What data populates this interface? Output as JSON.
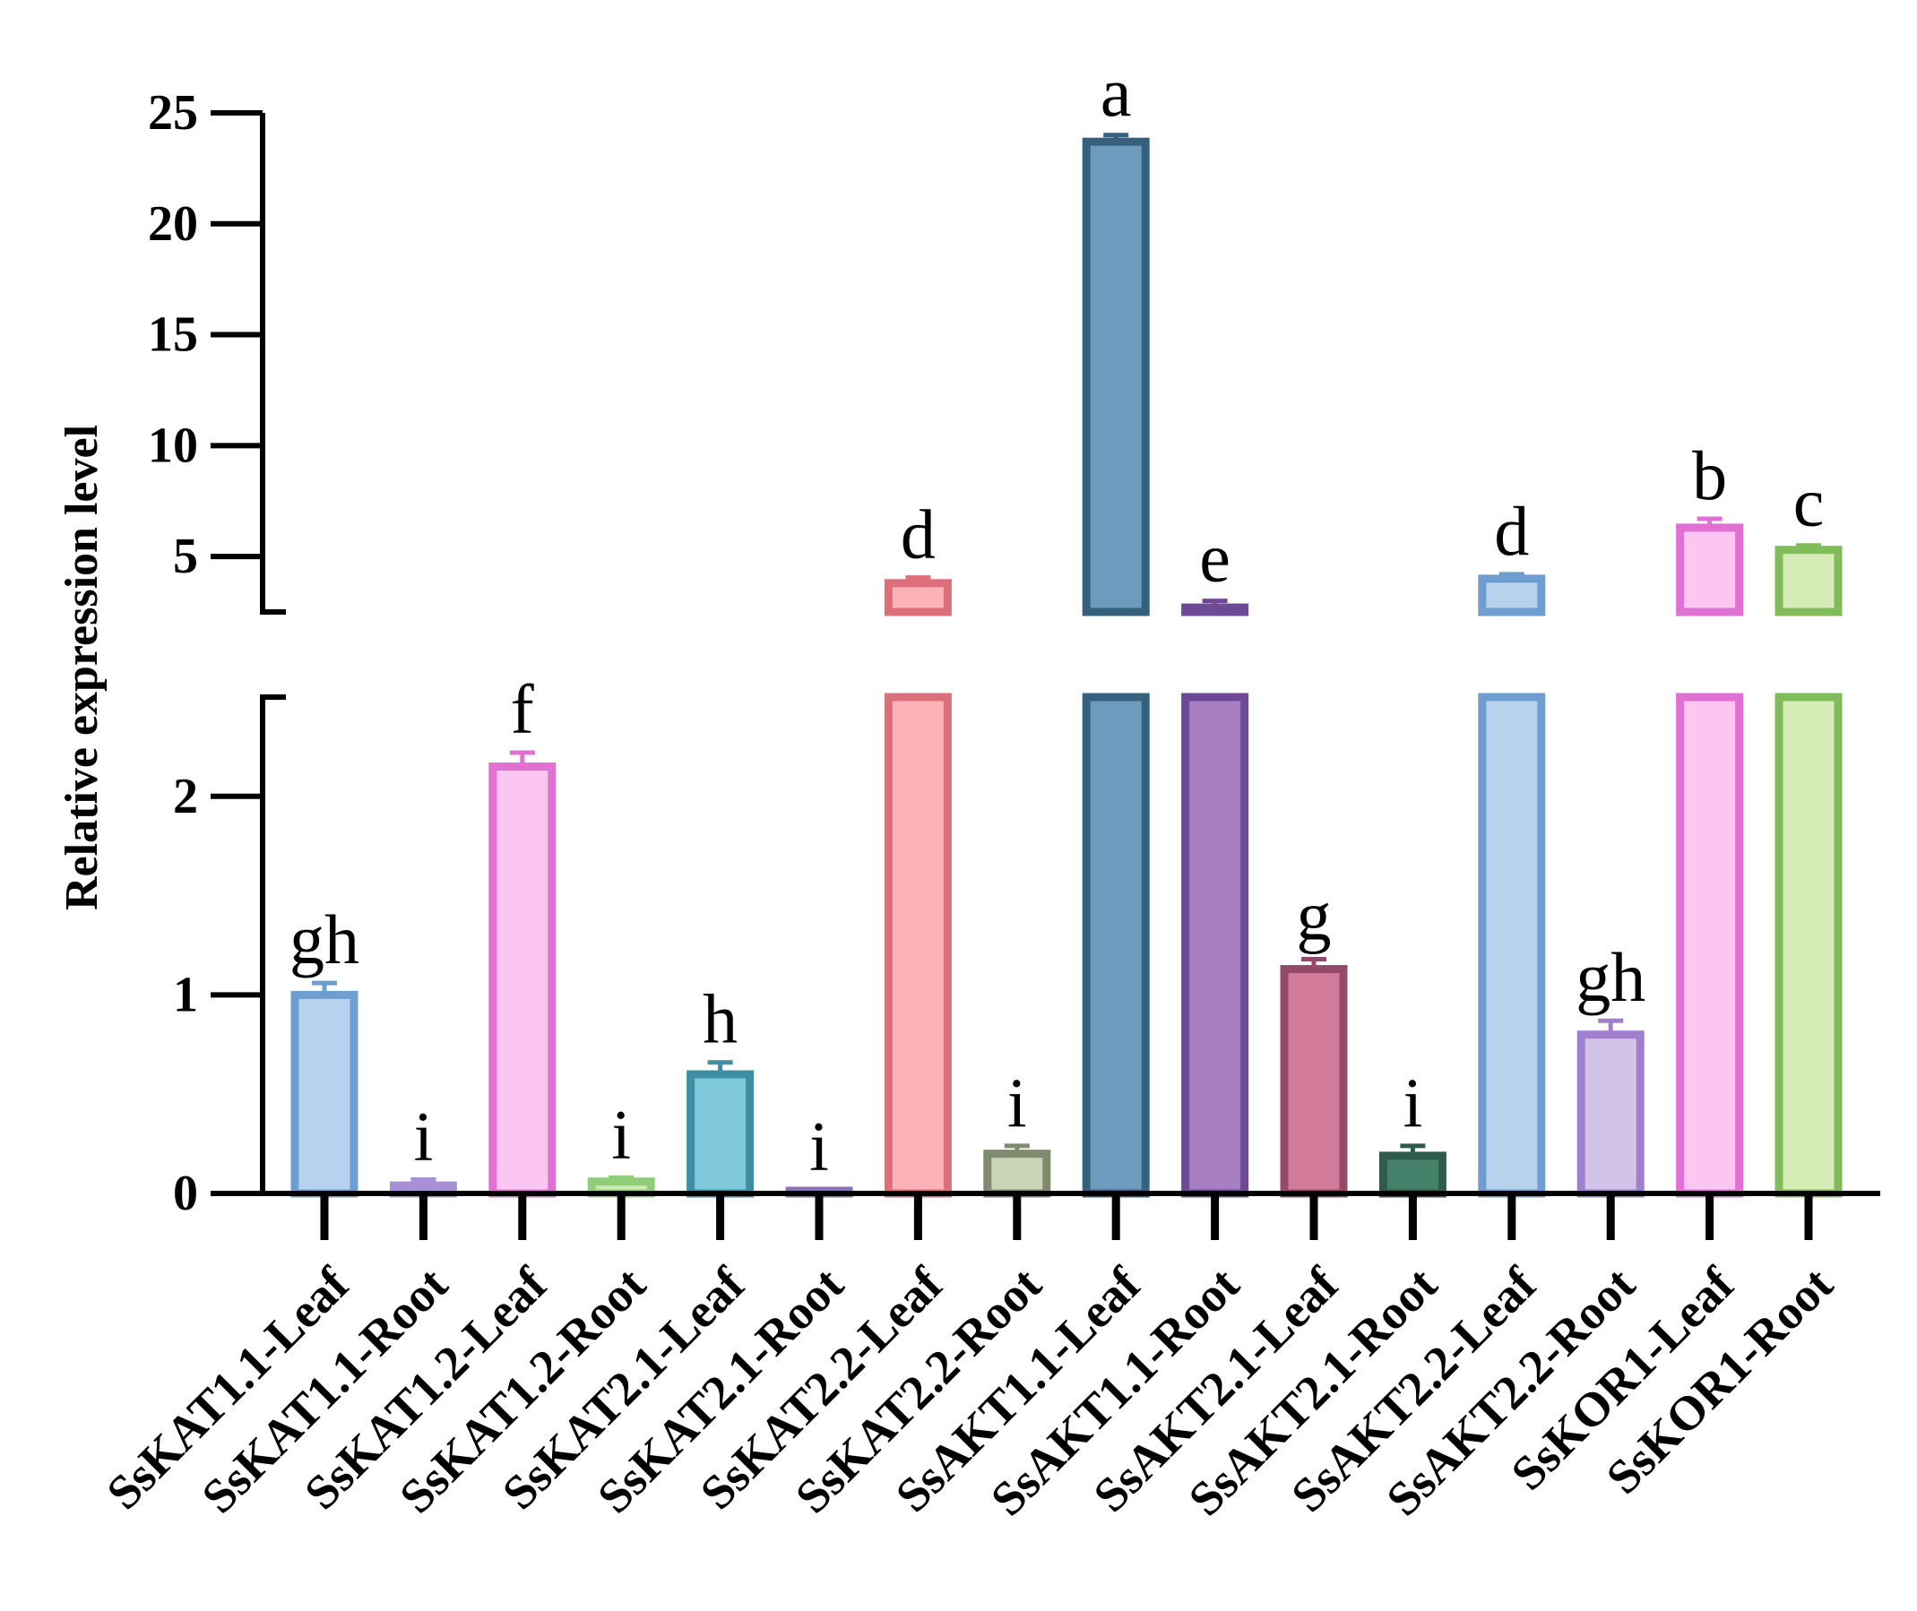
{
  "chart_data": {
    "type": "bar",
    "title": "",
    "xlabel": "",
    "ylabel": "Relative expression level",
    "broken_axis": {
      "lower_range": [
        0,
        2.5
      ],
      "upper_range": [
        2.5,
        25
      ],
      "lower_ticks": [
        "0",
        "1",
        "2"
      ],
      "upper_ticks": [
        "5",
        "10",
        "15",
        "20",
        "25"
      ]
    },
    "categories": [
      "SsKAT1.1-Leaf",
      "SsKAT1.1-Root",
      "SsKAT1.2-Leaf",
      "SsKAT1.2-Root",
      "SsKAT2.1-Leaf",
      "SsKAT2.1-Root",
      "SsKAT2.2-Leaf",
      "SsKAT2.2-Root",
      "SsAKT1.1-Leaf",
      "SsAKT1.1-Root",
      "SsAKT2.1-Leaf",
      "SsAKT2.1-Root",
      "SsAKT2.2-Leaf",
      "SsAKT2.2-Root",
      "SsKOR1-Leaf",
      "SsKOR1-Root"
    ],
    "values": [
      1.0,
      0.04,
      2.15,
      0.06,
      0.6,
      0.01,
      3.8,
      0.2,
      23.7,
      2.7,
      1.13,
      0.19,
      4.0,
      0.8,
      6.3,
      5.3
    ],
    "errors": [
      0.06,
      0.03,
      0.07,
      0.02,
      0.06,
      0.01,
      0.25,
      0.04,
      0.3,
      0.3,
      0.05,
      0.05,
      0.2,
      0.07,
      0.4,
      0.2
    ],
    "significance": [
      "gh",
      "i",
      "f",
      "i",
      "h",
      "i",
      "d",
      "i",
      "a",
      "e",
      "g",
      "i",
      "d",
      "gh",
      "b",
      "c"
    ],
    "colors": {
      "fill": [
        "#b7d1ee",
        "#d9c8ee",
        "#fcc6f2",
        "#cbe8b5",
        "#7fc8da",
        "#cdbfe3",
        "#fbb3b8",
        "#cbd3b6",
        "#6c9bbd",
        "#a77ec2",
        "#d27a99",
        "#46816c",
        "#b8d2ee",
        "#d4c3e9",
        "#fcc6f2",
        "#d6ecb7"
      ],
      "edge": [
        "#6e9ed0",
        "#a890d6",
        "#e070d2",
        "#90cf78",
        "#3f8ea3",
        "#8a72b0",
        "#dc6f79",
        "#7f8a6f",
        "#37607f",
        "#6e4994",
        "#94486a",
        "#2f5b4a",
        "#6e9ed0",
        "#a07fcc",
        "#e070d2",
        "#80bd5a"
      ]
    }
  }
}
